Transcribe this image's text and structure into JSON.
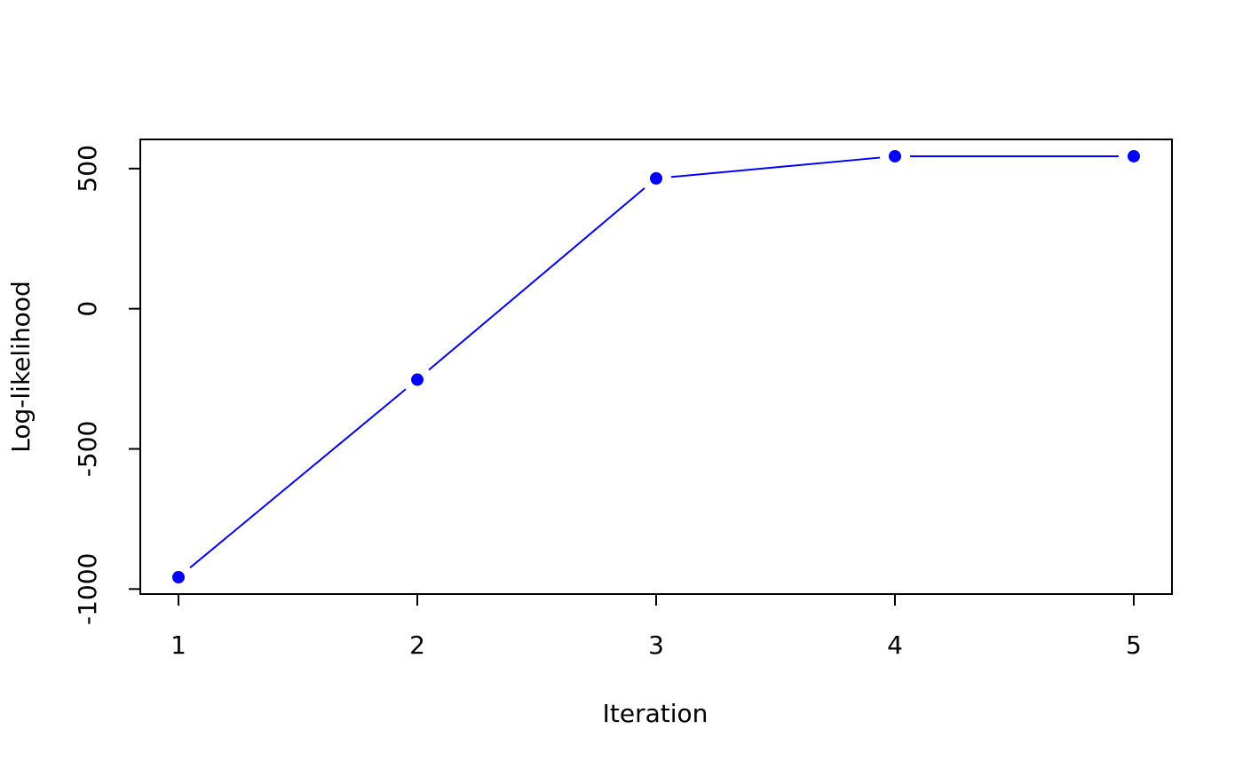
{
  "chart_data": {
    "type": "line",
    "x_label": "Iteration",
    "y_label": "Log-likelihood",
    "x": [
      1,
      2,
      3,
      4,
      5
    ],
    "series": [
      {
        "color": "#0000ff",
        "values": [
          -958,
          -253,
          465,
          544,
          544
        ]
      }
    ],
    "xlim": [
      0.84,
      5.16
    ],
    "xticks": [
      1,
      2,
      3,
      4,
      5
    ],
    "ylim": [
      -1018,
      604
    ],
    "yticks": [
      -1000,
      -500,
      0,
      500
    ],
    "markers": true
  }
}
